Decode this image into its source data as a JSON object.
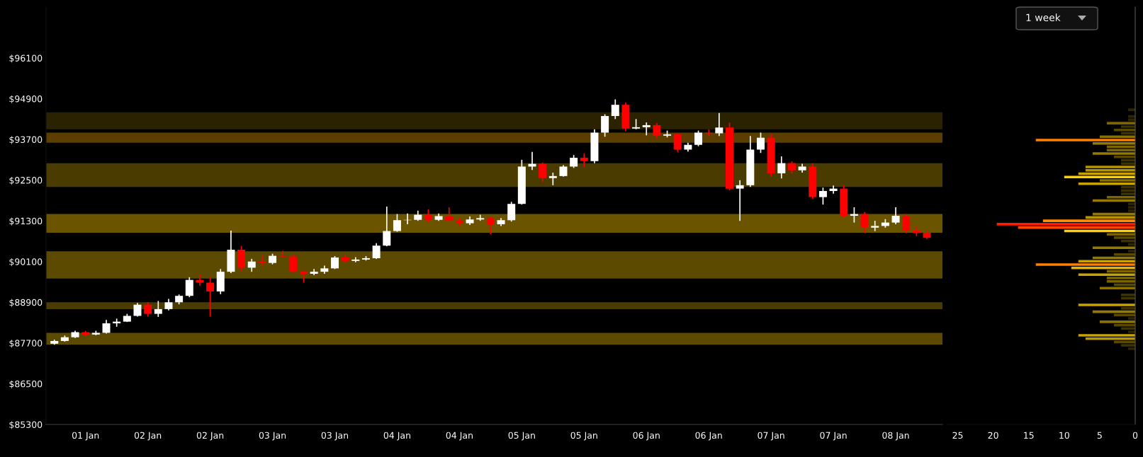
{
  "chart_data": [
    {
      "type": "candlestick",
      "categories": [
        null,
        null,
        null,
        "01 Jan",
        null,
        null,
        null,
        null,
        null,
        "02 Jan",
        null,
        null,
        null,
        null,
        null,
        "02 Jan",
        null,
        null,
        null,
        null,
        null,
        "03 Jan",
        null,
        null,
        null,
        null,
        null,
        "03 Jan",
        null,
        null,
        null,
        null,
        null,
        "04 Jan",
        null,
        null,
        null,
        null,
        null,
        "04 Jan",
        null,
        null,
        null,
        null,
        null,
        "05 Jan",
        null,
        null,
        null,
        null,
        null,
        "05 Jan",
        null,
        null,
        null,
        null,
        null,
        "06 Jan",
        null,
        null,
        null,
        null,
        null,
        "06 Jan",
        null,
        null,
        null,
        null,
        null,
        "07 Jan",
        null,
        null,
        null,
        null,
        null,
        "07 Jan",
        null,
        null,
        null,
        null,
        null,
        "08 Jan",
        null,
        null,
        null
      ],
      "ohlc": [
        [
          87680,
          87800,
          87650,
          87760
        ],
        [
          87760,
          87920,
          87740,
          87870
        ],
        [
          87870,
          88060,
          87850,
          88020
        ],
        [
          88020,
          88060,
          87910,
          87950
        ],
        [
          87950,
          88060,
          87930,
          88000
        ],
        [
          88000,
          88380,
          87980,
          88280
        ],
        [
          88280,
          88420,
          88180,
          88330
        ],
        [
          88330,
          88560,
          88320,
          88500
        ],
        [
          88500,
          88880,
          88480,
          88830
        ],
        [
          88830,
          88900,
          88480,
          88560
        ],
        [
          88560,
          88940,
          88470,
          88700
        ],
        [
          88700,
          89000,
          88660,
          88900
        ],
        [
          88900,
          89130,
          88840,
          89090
        ],
        [
          89090,
          89640,
          89050,
          89560
        ],
        [
          89560,
          89720,
          89390,
          89480
        ],
        [
          89480,
          89650,
          88480,
          89220
        ],
        [
          89220,
          89880,
          89140,
          89800
        ],
        [
          89800,
          91010,
          89760,
          90450
        ],
        [
          90450,
          90560,
          89800,
          89920
        ],
        [
          89920,
          90180,
          89800,
          90100
        ],
        [
          90100,
          90260,
          89960,
          90060
        ],
        [
          90060,
          90330,
          90020,
          90270
        ],
        [
          90270,
          90420,
          90230,
          90250
        ],
        [
          90250,
          90310,
          89760,
          89800
        ],
        [
          89800,
          89830,
          89480,
          89740
        ],
        [
          89740,
          89880,
          89700,
          89800
        ],
        [
          89800,
          89980,
          89740,
          89900
        ],
        [
          89900,
          90260,
          89880,
          90220
        ],
        [
          90220,
          90300,
          90060,
          90120
        ],
        [
          90120,
          90230,
          90080,
          90160
        ],
        [
          90160,
          90260,
          90130,
          90200
        ],
        [
          90200,
          90640,
          90180,
          90570
        ],
        [
          90570,
          91720,
          90550,
          91000
        ],
        [
          91000,
          91500,
          90980,
          91320
        ],
        [
          91320,
          91520,
          91200,
          91330
        ],
        [
          91330,
          91600,
          91300,
          91480
        ],
        [
          91480,
          91640,
          91250,
          91330
        ],
        [
          91330,
          91520,
          91300,
          91440
        ],
        [
          91440,
          91700,
          91300,
          91300
        ],
        [
          91300,
          91400,
          91150,
          91230
        ],
        [
          91230,
          91430,
          91180,
          91340
        ],
        [
          91340,
          91480,
          91300,
          91380
        ],
        [
          91380,
          91420,
          90900,
          91200
        ],
        [
          91200,
          91380,
          91150,
          91320
        ],
        [
          91320,
          91860,
          91280,
          91800
        ],
        [
          91800,
          93100,
          91780,
          92900
        ],
        [
          92900,
          93330,
          92800,
          92980
        ],
        [
          92980,
          93020,
          92450,
          92560
        ],
        [
          92560,
          92720,
          92350,
          92620
        ],
        [
          92620,
          92940,
          92600,
          92900
        ],
        [
          92900,
          93240,
          92860,
          93160
        ],
        [
          93160,
          93290,
          92880,
          93060
        ],
        [
          93060,
          94000,
          93000,
          93900
        ],
        [
          93900,
          94440,
          93780,
          94390
        ],
        [
          94390,
          94880,
          94300,
          94720
        ],
        [
          94720,
          94790,
          93940,
          94020
        ],
        [
          94020,
          94300,
          94000,
          94060
        ],
        [
          94060,
          94200,
          93820,
          94120
        ],
        [
          94120,
          94180,
          93720,
          93810
        ],
        [
          93810,
          93960,
          93760,
          93850
        ],
        [
          93850,
          93880,
          93330,
          93400
        ],
        [
          93400,
          93600,
          93340,
          93540
        ],
        [
          93540,
          93960,
          93500,
          93900
        ],
        [
          93900,
          94000,
          93800,
          93880
        ],
        [
          93880,
          94480,
          93800,
          94050
        ],
        [
          94050,
          94200,
          92200,
          92250
        ],
        [
          92250,
          92500,
          91300,
          92350
        ],
        [
          92350,
          93800,
          92300,
          93400
        ],
        [
          93400,
          93900,
          93300,
          93750
        ],
        [
          93750,
          93850,
          92600,
          92700
        ],
        [
          92700,
          93200,
          92550,
          93000
        ],
        [
          93000,
          93050,
          92700,
          92790
        ],
        [
          92790,
          92980,
          92720,
          92900
        ],
        [
          92900,
          93000,
          91950,
          92000
        ],
        [
          92000,
          92280,
          91780,
          92180
        ],
        [
          92180,
          92340,
          92100,
          92250
        ],
        [
          92250,
          92350,
          91400,
          91450
        ],
        [
          91450,
          91700,
          91250,
          91500
        ],
        [
          91500,
          91560,
          90950,
          91100
        ],
        [
          91100,
          91300,
          91000,
          91150
        ],
        [
          91150,
          91350,
          91100,
          91250
        ],
        [
          91250,
          91700,
          91200,
          91450
        ],
        [
          91450,
          91500,
          90950,
          91010
        ],
        [
          91010,
          91150,
          90850,
          90950
        ],
        [
          90950,
          91000,
          90760,
          90800
        ]
      ],
      "colors": [
        "#ffffff",
        "#ffffff",
        "#ffffff",
        "#ff0000",
        "#ffffff",
        "#ffffff",
        "#ffffff",
        "#ffffff",
        "#ffffff",
        "#ff0000",
        "#ffffff",
        "#ffffff",
        "#ffffff",
        "#ffffff",
        "#ff0000",
        "#ff0000",
        "#ffffff",
        "#ffffff",
        "#ff0000",
        "#ffffff",
        "#ff0000",
        "#ffffff",
        "#ff0000",
        "#ff0000",
        "#ff0000",
        "#ffffff",
        "#ffffff",
        "#ffffff",
        "#ff0000",
        "#ffffff",
        "#ffffff",
        "#ffffff",
        "#ffffff",
        "#ffffff",
        "#ffffff",
        "#ffffff",
        "#ff0000",
        "#ffffff",
        "#ff0000",
        "#ff0000",
        "#ffffff",
        "#ffffff",
        "#ff0000",
        "#ffffff",
        "#ffffff",
        "#ffffff",
        "#ffffff",
        "#ff0000",
        "#ffffff",
        "#ffffff",
        "#ffffff",
        "#ff0000",
        "#ffffff",
        "#ffffff",
        "#ffffff",
        "#ff0000",
        "#ffffff",
        "#ffffff",
        "#ff0000",
        "#ffffff",
        "#ff0000",
        "#ffffff",
        "#ffffff",
        "#ff0000",
        "#ffffff",
        "#ff0000",
        "#ffffff",
        "#ffffff",
        "#ffffff",
        "#ff0000",
        "#ffffff",
        "#ff0000",
        "#ffffff",
        "#ff0000",
        "#ffffff",
        "#ffffff",
        "#ff0000",
        "#ffffff",
        "#ff0000",
        "#ffffff",
        "#ffffff",
        "#ffffff",
        "#ff0000",
        "#ff0000",
        "#ff0000"
      ],
      "ylim": [
        85300,
        97600
      ],
      "yticks": [
        {
          "value": 85300,
          "label": "$85300"
        },
        {
          "value": 86500,
          "label": "$86500"
        },
        {
          "value": 87700,
          "label": "$87700"
        },
        {
          "value": 88900,
          "label": "$88900"
        },
        {
          "value": 90100,
          "label": "$90100"
        },
        {
          "value": 91300,
          "label": "$91300"
        },
        {
          "value": 92500,
          "label": "$92500"
        },
        {
          "value": 93700,
          "label": "$93700"
        },
        {
          "value": 94900,
          "label": "$94900"
        },
        {
          "value": 96100,
          "label": "$96100"
        }
      ],
      "bands": [
        {
          "axis": "y",
          "from": 87650,
          "to": 88000,
          "color": "#5c4a00"
        },
        {
          "axis": "y",
          "from": 88700,
          "to": 88900,
          "color": "#4a3c00"
        },
        {
          "axis": "y",
          "from": 89600,
          "to": 90400,
          "color": "#5c4a00"
        },
        {
          "axis": "y",
          "from": 90950,
          "to": 91500,
          "color": "#6b5400"
        },
        {
          "axis": "y",
          "from": 92300,
          "to": 93000,
          "color": "#4a3c00"
        },
        {
          "axis": "y",
          "from": 93600,
          "to": 93900,
          "color": "#5c3e00"
        },
        {
          "axis": "y",
          "from": 94000,
          "to": 94500,
          "color": "#2a2200"
        }
      ],
      "annotations": [
        "1 week"
      ]
    },
    {
      "type": "bar",
      "orientation": "horizontal",
      "categories": [
        null,
        null,
        null,
        null,
        null,
        null,
        null,
        null,
        null,
        null,
        null,
        null,
        null,
        null,
        null,
        null,
        null,
        null,
        null,
        null,
        null,
        null,
        null,
        null,
        null,
        null,
        null,
        null,
        null,
        null,
        null,
        null,
        null,
        null,
        null,
        null,
        null,
        null,
        null,
        null,
        null,
        null,
        null,
        null,
        null,
        null,
        null,
        null,
        null,
        null,
        null,
        null,
        null,
        null,
        null,
        null,
        null,
        null,
        null,
        null,
        null,
        null,
        null,
        null,
        null,
        null,
        null,
        null,
        null,
        null,
        null,
        null,
        null,
        null,
        null,
        null,
        null,
        null,
        null,
        null,
        null,
        null,
        null,
        null,
        null,
        null,
        null,
        null,
        null,
        null,
        null,
        null,
        null,
        null,
        null,
        null,
        null,
        null,
        null,
        null,
        null,
        null,
        null,
        null,
        null,
        null,
        null,
        null,
        null,
        null,
        null,
        null,
        null,
        null,
        null,
        null,
        null,
        null,
        null,
        null,
        null,
        null,
        null,
        null
      ],
      "values": [
        null,
        null,
        null,
        null,
        null,
        null,
        null,
        null,
        null,
        null,
        null,
        null,
        null,
        null,
        null,
        null,
        null,
        null,
        null,
        null,
        null,
        null,
        null,
        null,
        null,
        null,
        null,
        null,
        null,
        null,
        1,
        null,
        1,
        1,
        4,
        2,
        3,
        2,
        5,
        14,
        6,
        4,
        4,
        6,
        3,
        2,
        2,
        7,
        7,
        8,
        10,
        5,
        8,
        2,
        2,
        2,
        4,
        6,
        1,
        1,
        1,
        6,
        7,
        13,
        19.5,
        16.5,
        10,
        4,
        3,
        2,
        1,
        6,
        1,
        3,
        6,
        8,
        14,
        9,
        4,
        8,
        4,
        4,
        3,
        5,
        null,
        2,
        2,
        null,
        8,
        2,
        6,
        3,
        1,
        5,
        3,
        2,
        1,
        8,
        7,
        3,
        2,
        1,
        null,
        null,
        null,
        null,
        null,
        null,
        null,
        null,
        null,
        null,
        null,
        null,
        null,
        null,
        null,
        null,
        null,
        null,
        null,
        null,
        null,
        null
      ],
      "colors": [
        null,
        null,
        null,
        null,
        null,
        null,
        null,
        null,
        null,
        null,
        null,
        null,
        null,
        null,
        null,
        null,
        null,
        null,
        null,
        null,
        null,
        null,
        null,
        null,
        null,
        null,
        null,
        null,
        null,
        null,
        "#2e2600",
        null,
        "#2e2600",
        "#2e2600",
        "#7a6500",
        "#3d3300",
        "#5a4a00",
        "#3d3300",
        "#8a7200",
        "#ff7f00",
        "#957a00",
        "#7a6500",
        "#7a6500",
        "#957a00",
        "#5a4a00",
        "#3d3300",
        "#3d3300",
        "#b89600",
        "#b89600",
        "#c9a300",
        "#ffd000",
        "#8a7200",
        "#c9a300",
        "#3d3300",
        "#3d3300",
        "#3d3300",
        "#7a6500",
        "#957a00",
        "#2e2600",
        "#2e2600",
        "#2e2600",
        "#957a00",
        "#b89600",
        "#ff8c00",
        "#ff1a00",
        "#ff4500",
        "#ffd000",
        "#7a6500",
        "#5a4a00",
        "#3d3300",
        "#2e2600",
        "#957a00",
        "#2e2600",
        "#5a4a00",
        "#957a00",
        "#c9a300",
        "#ff7f00",
        "#e0b400",
        "#7a6500",
        "#c9a300",
        "#7a6500",
        "#7a6500",
        "#5a4a00",
        "#8a7200",
        null,
        "#3d3300",
        "#3d3300",
        null,
        "#c9a300",
        "#3d3300",
        "#957a00",
        "#5a4a00",
        "#2e2600",
        "#8a7200",
        "#5a4a00",
        "#3d3300",
        "#2e2600",
        "#c9a300",
        "#b89600",
        "#5a4a00",
        "#3d3300",
        "#2e2600",
        null,
        null,
        null,
        null,
        null,
        null,
        null,
        null,
        null,
        null,
        null,
        null,
        null,
        null,
        null,
        null,
        null,
        null,
        null,
        null,
        null,
        null
      ],
      "xlim": [
        26.5,
        0
      ],
      "xticks": [
        25,
        20,
        15,
        10,
        5,
        0
      ],
      "tick_labels": "x"
    }
  ]
}
